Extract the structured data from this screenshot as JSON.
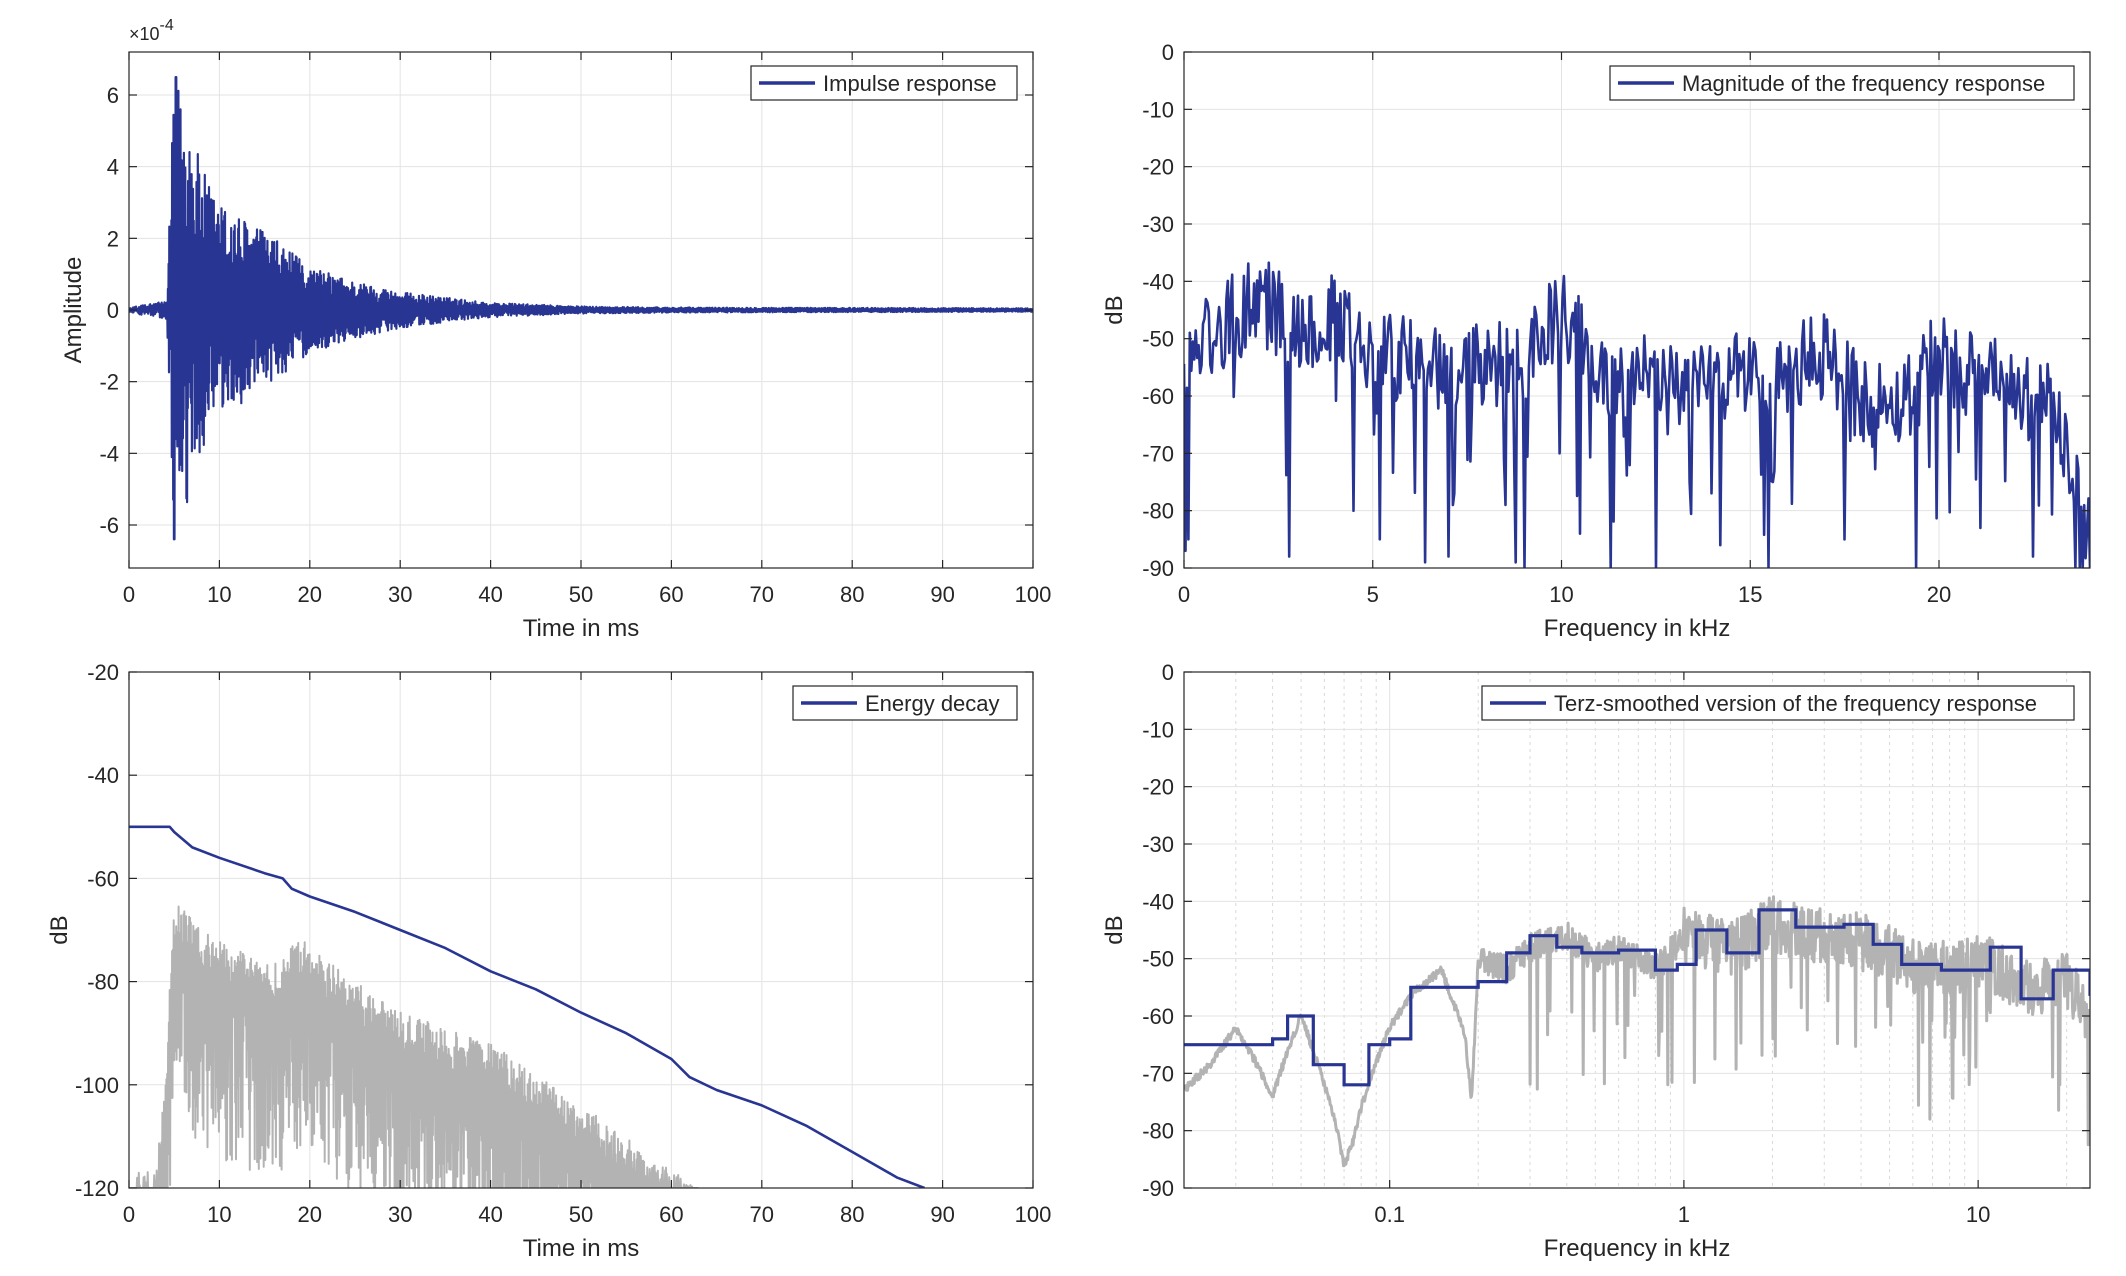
{
  "chart_data": [
    {
      "type": "line",
      "xlabel": "Time in ms",
      "ylabel": "Amplitude",
      "xlim": [
        0,
        100
      ],
      "ylim": [
        -7.2,
        7.2
      ],
      "y_scale_exponent": "-4",
      "y_exponent_prefix": "×10",
      "xticks": [
        0,
        10,
        20,
        30,
        40,
        50,
        60,
        70,
        80,
        90,
        100
      ],
      "xtick_labels": [
        "0",
        "10",
        "20",
        "30",
        "40",
        "50",
        "60",
        "70",
        "80",
        "90",
        "100"
      ],
      "yticks": [
        -6,
        -4,
        -2,
        0,
        2,
        4,
        6
      ],
      "ytick_labels": [
        "-6",
        "-4",
        "-2",
        "0",
        "2",
        "4",
        "6"
      ],
      "grid": true,
      "legend_placement": "top-right",
      "legend": [
        "Impulse response"
      ],
      "series": [
        {
          "name": "Impulse response",
          "color": "#283593",
          "kind": "decaying-oscillation",
          "onset_ms": 4.2,
          "peak_positive": 6.5,
          "peak_negative": -6.4,
          "decay_ms": 14,
          "x_key": [
            0,
            4.2,
            5,
            6,
            7,
            8,
            10,
            15,
            18,
            20,
            25,
            30,
            35,
            40,
            50,
            60,
            100
          ],
          "envelope_key": [
            0.05,
            0.3,
            6.5,
            6.3,
            5.0,
            4.0,
            3.0,
            2.2,
            1.6,
            1.2,
            0.8,
            0.5,
            0.35,
            0.2,
            0.1,
            0.07,
            0.05
          ]
        }
      ]
    },
    {
      "type": "line",
      "xlabel": "Frequency in kHz",
      "ylabel": "dB",
      "xlim": [
        0,
        24
      ],
      "ylim": [
        -90,
        0
      ],
      "xticks": [
        0,
        5,
        10,
        15,
        20
      ],
      "xtick_labels": [
        "0",
        "5",
        "10",
        "15",
        "20"
      ],
      "yticks": [
        0,
        -10,
        -20,
        -30,
        -40,
        -50,
        -60,
        -70,
        -80,
        -90
      ],
      "ytick_labels": [
        "0",
        "-10",
        "-20",
        "-30",
        "-40",
        "-50",
        "-60",
        "-70",
        "-80",
        "-90"
      ],
      "grid": true,
      "legend_placement": "top-right",
      "legend": [
        "Magnitude of the frequency response"
      ],
      "series": [
        {
          "name": "Magnitude of the frequency response",
          "color": "#283593",
          "kind": "noisy",
          "x_key": [
            0,
            0.5,
            1,
            2,
            3,
            4,
            5,
            6,
            7,
            8,
            9,
            10,
            11,
            12,
            13,
            14,
            15,
            16,
            17,
            18,
            19,
            20,
            21,
            22,
            23,
            24
          ],
          "level_key": [
            -55,
            -50,
            -48,
            -43,
            -48,
            -46,
            -52,
            -54,
            -55,
            -55,
            -53,
            -46,
            -55,
            -57,
            -58,
            -57,
            -56,
            -56,
            -53,
            -61,
            -61,
            -52,
            -57,
            -59,
            -60,
            -85
          ],
          "dips": [
            {
              "x": 0.05,
              "y": -87
            },
            {
              "x": 0.1,
              "y": -85
            },
            {
              "x": 2.8,
              "y": -88
            },
            {
              "x": 4.5,
              "y": -80
            },
            {
              "x": 5.2,
              "y": -85
            },
            {
              "x": 6.4,
              "y": -89
            },
            {
              "x": 7,
              "y": -88
            },
            {
              "x": 8.5,
              "y": -79
            },
            {
              "x": 8.8,
              "y": -89
            },
            {
              "x": 9,
              "y": -93
            },
            {
              "x": 10.5,
              "y": -84
            },
            {
              "x": 11.3,
              "y": -93
            },
            {
              "x": 12.5,
              "y": -92
            },
            {
              "x": 13.4,
              "y": -75
            },
            {
              "x": 14.2,
              "y": -86
            },
            {
              "x": 15.5,
              "y": -91
            },
            {
              "x": 17.5,
              "y": -85
            },
            {
              "x": 19.4,
              "y": -91
            },
            {
              "x": 21.1,
              "y": -83
            },
            {
              "x": 22.5,
              "y": -88
            },
            {
              "x": 23.6,
              "y": -92
            },
            {
              "x": 23.8,
              "y": -91
            },
            {
              "x": 24,
              "y": -90
            }
          ]
        }
      ]
    },
    {
      "type": "line",
      "xlabel": "Time in ms",
      "ylabel": "dB",
      "xlim": [
        0,
        100
      ],
      "ylim": [
        -120,
        -20
      ],
      "xticks": [
        0,
        10,
        20,
        30,
        40,
        50,
        60,
        70,
        80,
        90,
        100
      ],
      "xtick_labels": [
        "0",
        "10",
        "20",
        "30",
        "40",
        "50",
        "60",
        "70",
        "80",
        "90",
        "100"
      ],
      "yticks": [
        -20,
        -40,
        -60,
        -80,
        -100,
        -120
      ],
      "ytick_labels": [
        "-20",
        "-40",
        "-60",
        "-80",
        "-100",
        "-120"
      ],
      "grid": true,
      "legend_placement": "top-right",
      "legend": [
        "Energy decay"
      ],
      "series": [
        {
          "name": "Energy decay",
          "color": "#283593",
          "x": [
            0,
            4.5,
            5,
            7,
            10,
            15,
            17,
            18,
            20,
            25,
            30,
            35,
            40,
            45,
            50,
            55,
            60,
            62,
            65,
            70,
            75,
            80,
            85,
            88
          ],
          "y": [
            -50,
            -50,
            -51,
            -54,
            -56,
            -59,
            -60,
            -62,
            -63.5,
            -66.5,
            -70,
            -73.5,
            -78,
            -81.5,
            -86,
            -90,
            -95,
            -98.5,
            -101,
            -104,
            -108,
            -113,
            -118,
            -120
          ]
        },
        {
          "color": "#b3b3b3",
          "kind": "noisy-envelope",
          "x_key": [
            0,
            3,
            4,
            4.5,
            5,
            8,
            12,
            17,
            18,
            25,
            30,
            35,
            40,
            45,
            50,
            55,
            58,
            62,
            63
          ],
          "top_key": [
            -118,
            -115,
            -100,
            -80,
            -64,
            -70,
            -74,
            -76,
            -70,
            -80,
            -86,
            -89,
            -92,
            -98,
            -104,
            -110,
            -115,
            -118,
            -120
          ]
        }
      ]
    },
    {
      "type": "line",
      "xlabel": "Frequency in kHz",
      "ylabel": "dB",
      "xscale": "log",
      "xlim": [
        0.02,
        24
      ],
      "ylim": [
        -90,
        0
      ],
      "xticks": [
        0.1,
        1,
        10
      ],
      "xtick_labels": [
        "0.1",
        "1",
        "10"
      ],
      "yticks": [
        0,
        -10,
        -20,
        -30,
        -40,
        -50,
        -60,
        -70,
        -80,
        -90
      ],
      "ytick_labels": [
        "0",
        "-10",
        "-20",
        "-30",
        "-40",
        "-50",
        "-60",
        "-70",
        "-80",
        "-90"
      ],
      "grid": true,
      "legend_placement": "top-right",
      "legend": [
        "Terz-smoothed version of the frequency response"
      ],
      "series": [
        {
          "name": "Terz-smoothed version of the frequency response",
          "color": "#283593",
          "kind": "step",
          "x": [
            0.02,
            0.04,
            0.045,
            0.055,
            0.07,
            0.085,
            0.1,
            0.118,
            0.2,
            0.25,
            0.3,
            0.37,
            0.45,
            0.6,
            0.8,
            0.95,
            1.1,
            1.4,
            1.8,
            2.4,
            3.5,
            4.4,
            5.5,
            7.5,
            9,
            11,
            14,
            18,
            24
          ],
          "y": [
            -65,
            -64,
            -60,
            -68.5,
            -72,
            -65,
            -64,
            -55,
            -54,
            -49,
            -46,
            -48,
            -49,
            -48.5,
            -52,
            -51,
            -45,
            -49,
            -41.5,
            -44.5,
            -44,
            -47.5,
            -51,
            -52,
            -52,
            -48,
            -57,
            -52,
            -56.5
          ]
        },
        {
          "color": "#b3b3b3",
          "kind": "noisy",
          "x_key": [
            0.02,
            0.025,
            0.03,
            0.035,
            0.04,
            0.045,
            0.05,
            0.055,
            0.06,
            0.065,
            0.07,
            0.075,
            0.08,
            0.09,
            0.1,
            0.12,
            0.15,
            0.18,
            0.19,
            0.2,
            0.25,
            0.3,
            0.4,
            0.5,
            0.6,
            0.8,
            1,
            1.5,
            2,
            3,
            4,
            6,
            8,
            10,
            15,
            20,
            24
          ],
          "level_key": [
            -73,
            -68,
            -62,
            -68,
            -74,
            -66,
            -60,
            -66,
            -72,
            -78,
            -86,
            -82,
            -76,
            -68,
            -62,
            -56,
            -52,
            -63,
            -75,
            -50,
            -52,
            -48,
            -46,
            -50,
            -48,
            -52,
            -46,
            -48,
            -44,
            -46,
            -47,
            -51,
            -52,
            -50,
            -55,
            -54,
            -60
          ]
        }
      ]
    }
  ]
}
